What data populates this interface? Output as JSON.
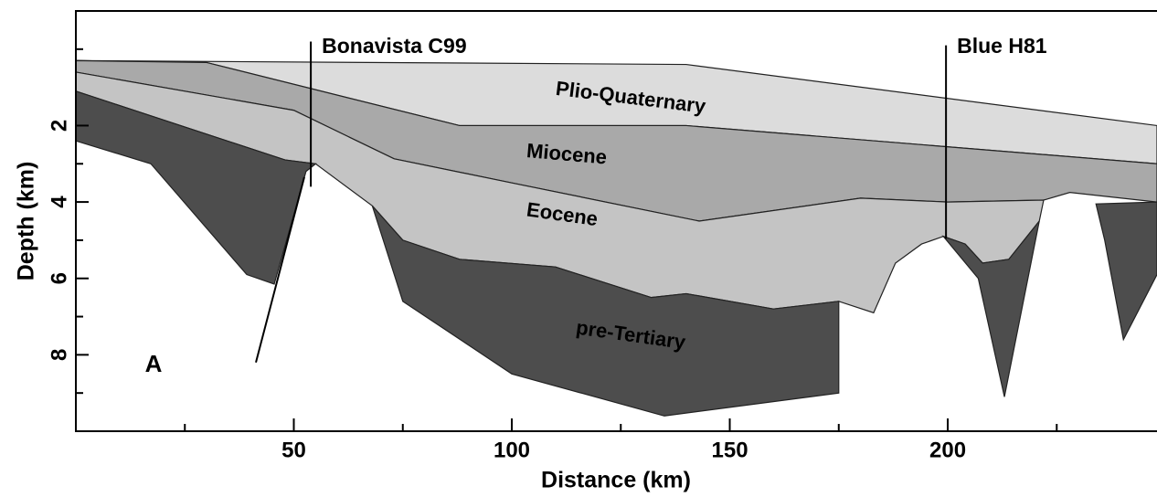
{
  "chart_data": {
    "type": "cross-section",
    "x_label": "Distance (km)",
    "y_label": "Depth (km)",
    "xlim": [
      0,
      248
    ],
    "ylim": [
      -1,
      10
    ],
    "y_reverse": true,
    "xticks": [
      50,
      100,
      150,
      200
    ],
    "xminor_ticks": [
      25,
      75,
      125,
      175,
      225
    ],
    "yticks": [
      2,
      4,
      6,
      8
    ],
    "yminor_ticks": [
      0,
      3,
      5,
      7,
      9
    ],
    "layers": [
      {
        "name": "Plio-Quaternary",
        "color": "#dcdcdc",
        "polygons": [
          {
            "x": [
              0,
              140,
              248,
              248,
              140,
              88,
              30,
              0
            ],
            "depth": [
              0.3,
              0.4,
              2.0,
              3.0,
              2.0,
              2.0,
              0.35,
              0.3
            ]
          }
        ]
      },
      {
        "name": "Miocene",
        "color": "#a9a9a9",
        "polygons": [
          {
            "x": [
              0,
              30,
              88,
              140,
              248,
              248,
              228,
              222,
              200,
              180,
              143,
              100,
              73,
              50,
              0
            ],
            "depth": [
              0.3,
              0.35,
              2.0,
              2.0,
              3.0,
              4.0,
              3.75,
              3.95,
              4.0,
              3.9,
              4.5,
              3.5,
              2.87,
              1.6,
              0.6
            ]
          }
        ]
      },
      {
        "name": "Eocene",
        "color": "#c4c4c4",
        "polygons": [
          {
            "x": [
              0,
              50,
              73,
              100,
              143,
              180,
              200,
              222,
              221,
              214,
              208,
              204,
              199,
              194,
              188,
              183,
              175,
              160,
              140,
              132,
              110,
              88,
              75,
              68,
              55,
              48,
              0
            ],
            "depth": [
              0.6,
              1.6,
              2.87,
              3.5,
              4.5,
              3.9,
              4.0,
              3.95,
              4.5,
              5.5,
              5.6,
              5.1,
              4.9,
              5.1,
              5.6,
              6.9,
              6.6,
              6.8,
              6.4,
              6.5,
              5.7,
              5.5,
              5.0,
              4.1,
              3.0,
              2.9,
              1.1
            ]
          }
        ]
      },
      {
        "name": "pre-Tertiary",
        "color": "#4d4d4d",
        "polygons": [
          {
            "x": [
              0,
              48,
              55,
              52.8,
              45.5,
              39.2,
              17.2,
              0
            ],
            "depth": [
              1.1,
              2.9,
              3.0,
              3.2,
              6.15,
              5.9,
              3.0,
              2.4
            ]
          },
          {
            "x": [
              68,
              75,
              88,
              110,
              132,
              140,
              160,
              175,
              175,
              135,
              100,
              75
            ],
            "depth": [
              4.1,
              5.0,
              5.5,
              5.7,
              6.5,
              6.4,
              6.8,
              6.6,
              9.0,
              9.6,
              8.5,
              6.6
            ]
          },
          {
            "x": [
              199,
              204,
              208,
              214,
              221,
              213,
              207
            ],
            "depth": [
              4.9,
              5.1,
              5.6,
              5.5,
              4.5,
              9.1,
              6.0
            ]
          },
          {
            "x": [
              234,
              248,
              248,
              240.3,
              236
            ],
            "depth": [
              4.05,
              4.0,
              5.9,
              7.6,
              5.0
            ]
          }
        ]
      }
    ],
    "wells": [
      {
        "name": "Bonavista C99",
        "x": 53.9,
        "top": -0.2,
        "bottom": 3.6
      },
      {
        "name": "Blue H81",
        "x": 199.6,
        "top": -0.1,
        "bottom": 4.96
      }
    ],
    "fault": {
      "x": [
        41.3,
        52.4
      ],
      "depth": [
        8.2,
        3.35
      ]
    },
    "annotation": "A"
  }
}
